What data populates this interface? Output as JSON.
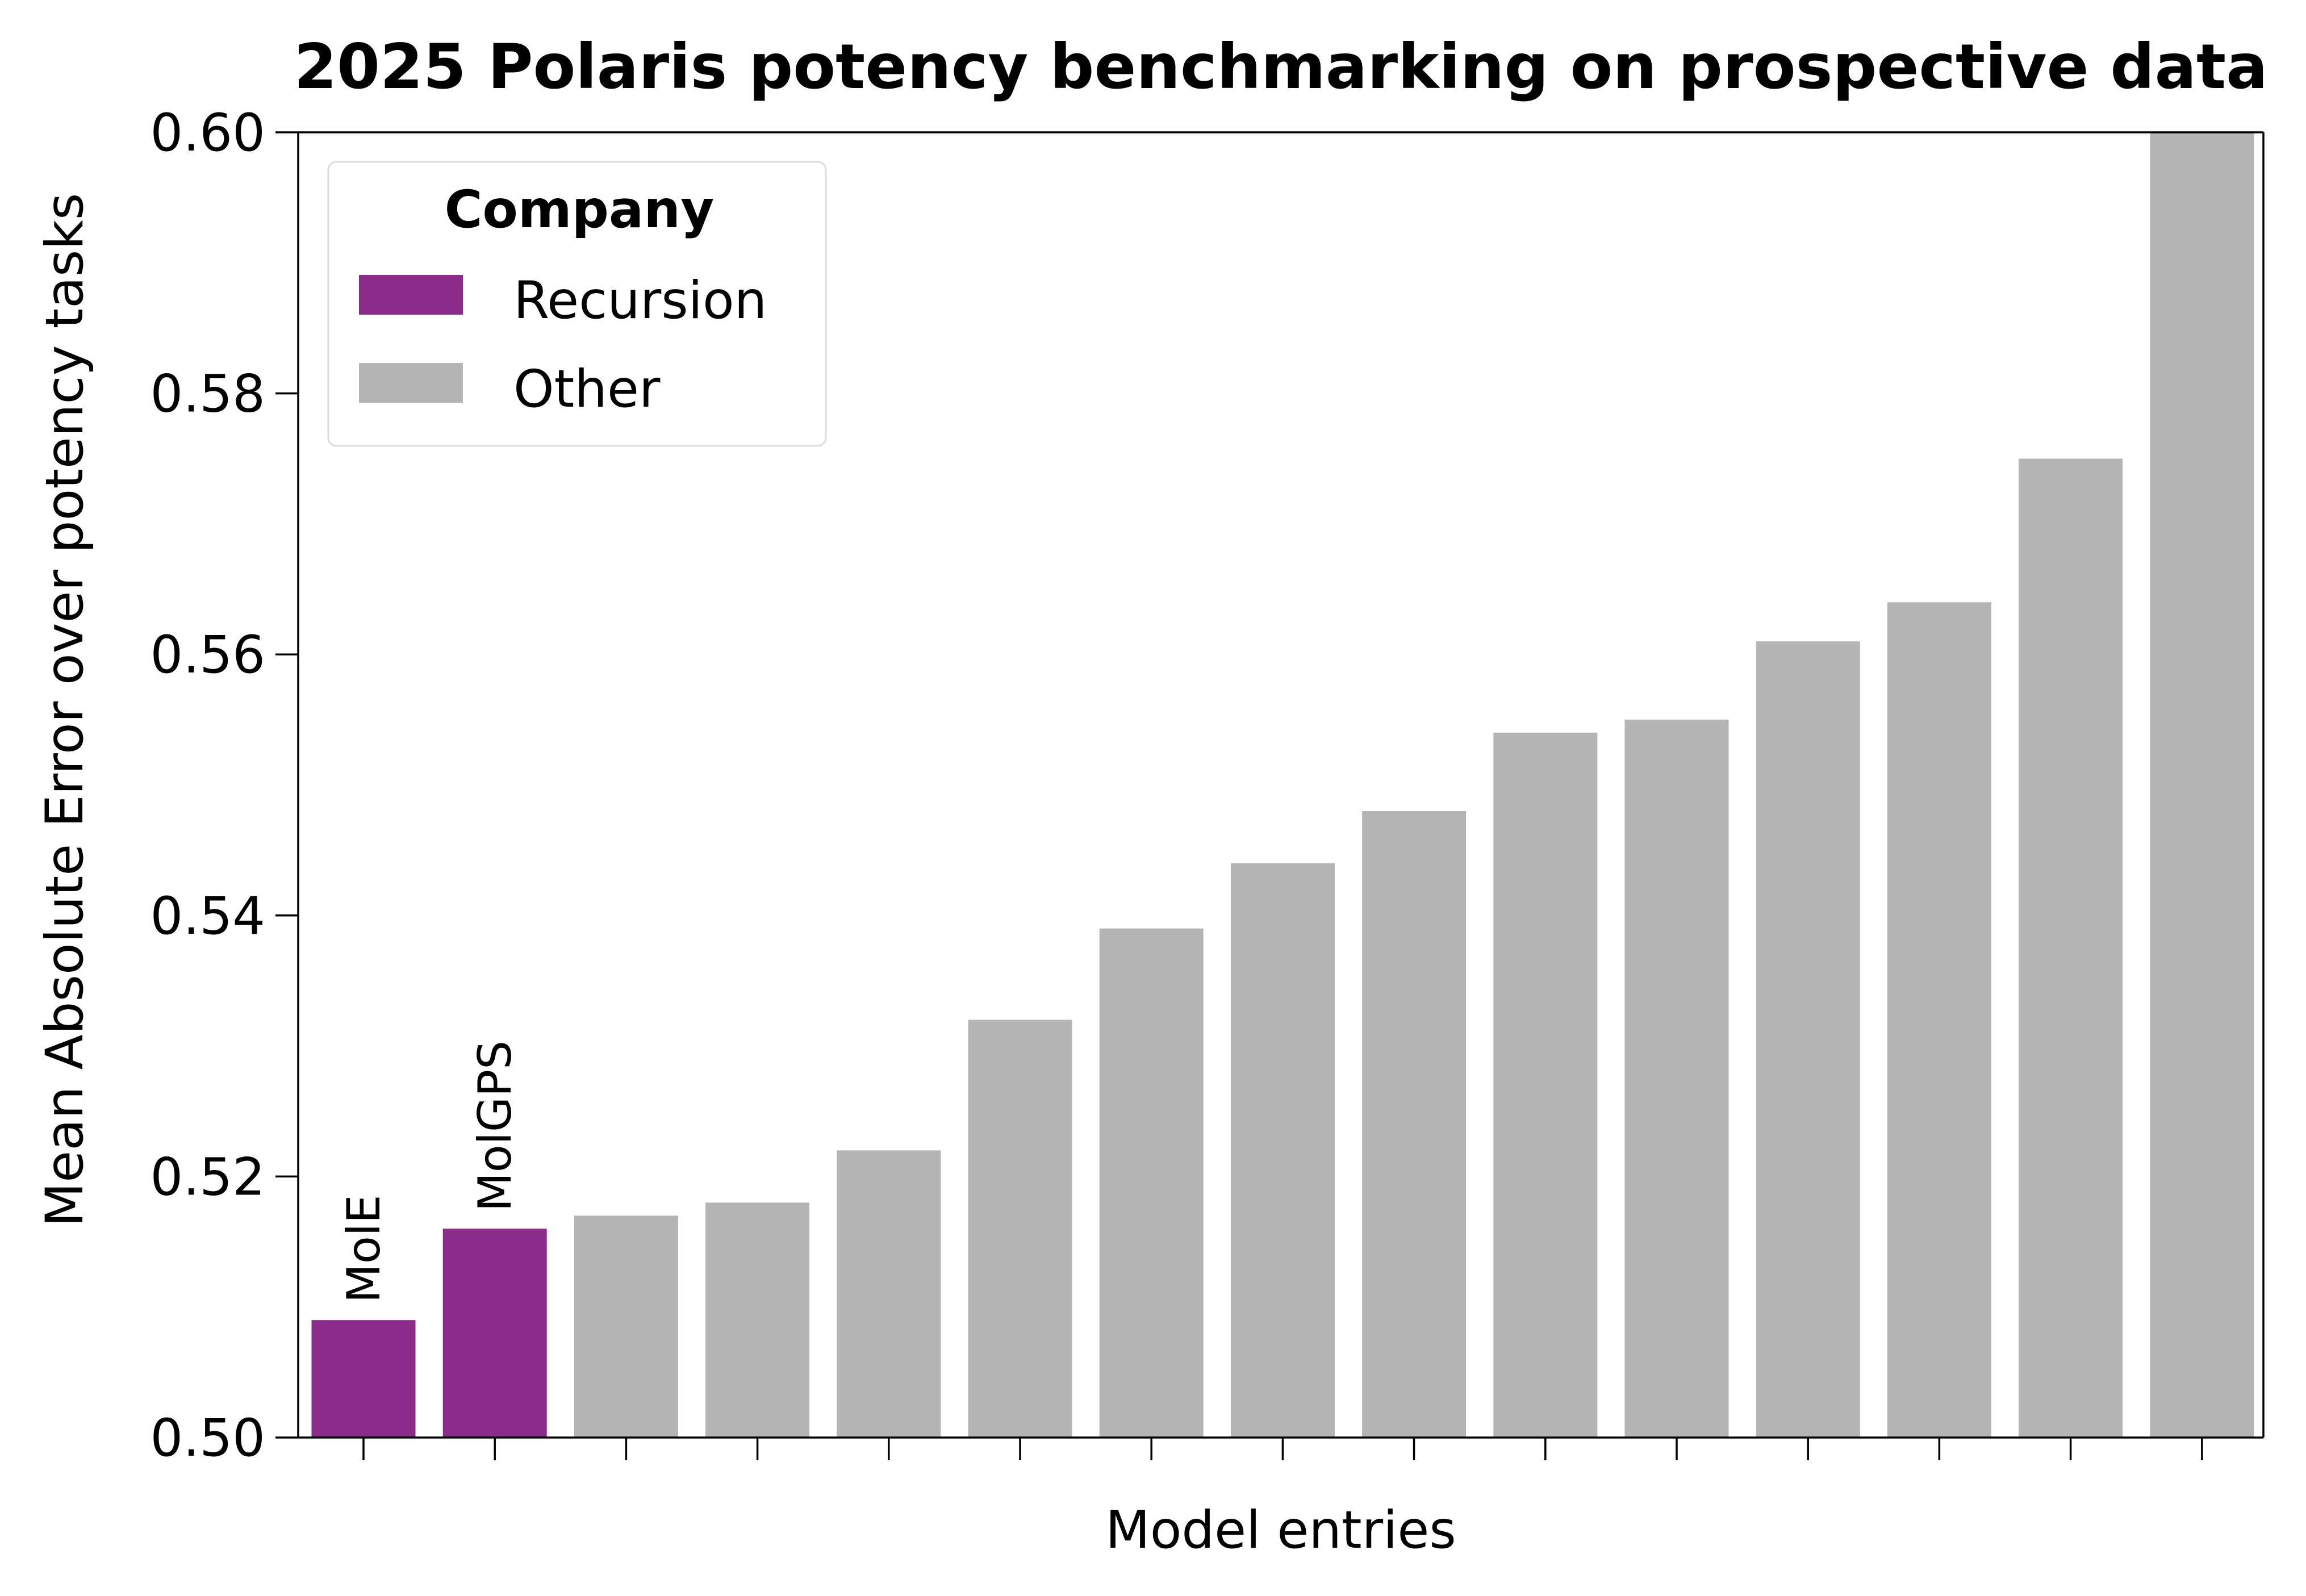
{
  "chart_data": {
    "type": "bar",
    "title": "2025 Polaris potency benchmarking on prospective data",
    "xlabel": "Model entries",
    "ylabel": "Mean Absolute Error over potency tasks",
    "ylim": [
      0.5,
      0.6
    ],
    "yticks": [
      "0.50",
      "0.52",
      "0.54",
      "0.56",
      "0.58",
      "0.60"
    ],
    "grid": false,
    "legend": {
      "title": "Company",
      "placement": "top-left",
      "entries": [
        {
          "label": "Recursion",
          "color": "#8B2C8B"
        },
        {
          "label": "Other",
          "color": "#B4B4B4"
        }
      ]
    },
    "bars": [
      {
        "label": "MolE",
        "value": 0.509,
        "group": "Recursion"
      },
      {
        "label": "MolGPS",
        "value": 0.516,
        "group": "Recursion"
      },
      {
        "label": "",
        "value": 0.517,
        "group": "Other"
      },
      {
        "label": "",
        "value": 0.518,
        "group": "Other"
      },
      {
        "label": "",
        "value": 0.522,
        "group": "Other"
      },
      {
        "label": "",
        "value": 0.532,
        "group": "Other"
      },
      {
        "label": "",
        "value": 0.539,
        "group": "Other"
      },
      {
        "label": "",
        "value": 0.544,
        "group": "Other"
      },
      {
        "label": "",
        "value": 0.548,
        "group": "Other"
      },
      {
        "label": "",
        "value": 0.554,
        "group": "Other"
      },
      {
        "label": "",
        "value": 0.555,
        "group": "Other"
      },
      {
        "label": "",
        "value": 0.561,
        "group": "Other"
      },
      {
        "label": "",
        "value": 0.564,
        "group": "Other"
      },
      {
        "label": "",
        "value": 0.575,
        "group": "Other"
      },
      {
        "label": "",
        "value": 0.6,
        "group": "Other"
      }
    ],
    "colors": {
      "Recursion": "#8B2C8B",
      "Other": "#B4B4B4"
    }
  }
}
